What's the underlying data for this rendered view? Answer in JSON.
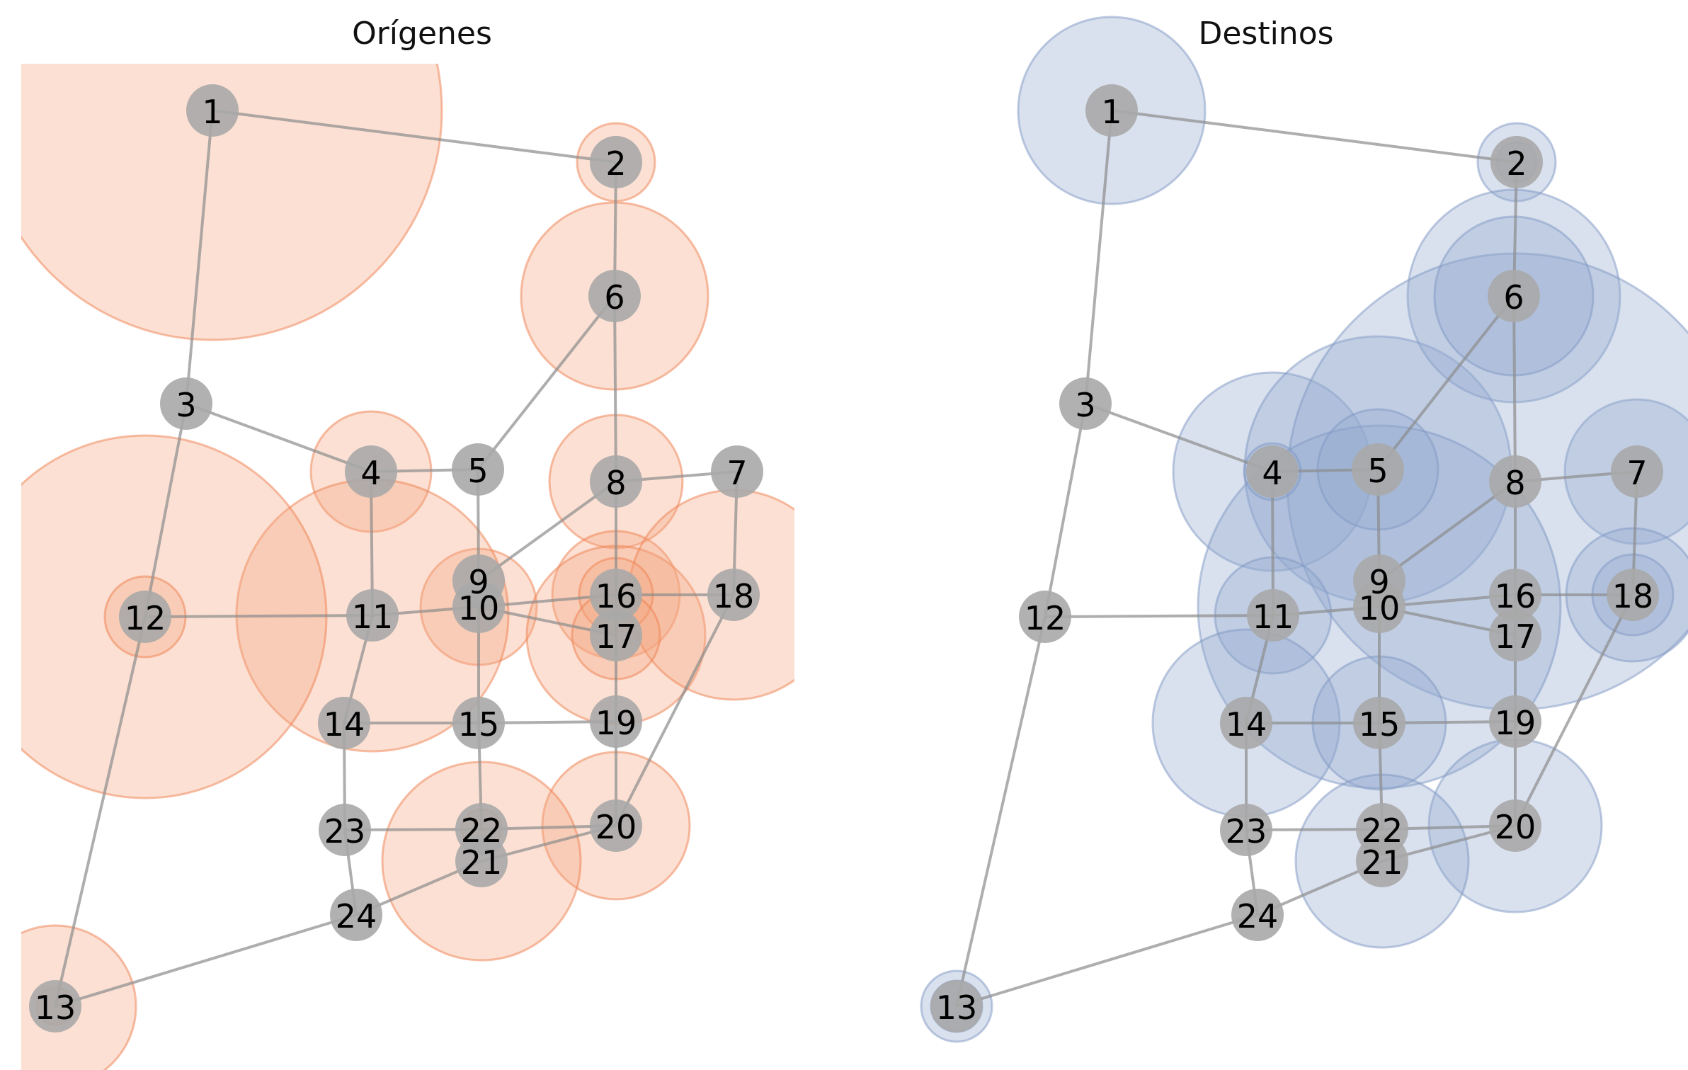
{
  "panels": [
    {
      "id": "origenes",
      "title": "Orígenes",
      "fill_color": "#f4a582",
      "stroke_color": "#f08050",
      "flows": {
        "1": 324,
        "2": 55,
        "3": 0,
        "4": 85,
        "5": 0,
        "6": 132,
        "7": 0,
        "8": 94,
        "9": 0,
        "10": 82,
        "11": 192,
        "12": 256,
        "13": 114,
        "14": 0,
        "15": 0,
        "16": 90,
        "17": 126,
        "18": 148,
        "19": 0,
        "20": 104,
        "21": 140,
        "22": 28,
        "23": 0,
        "24": 0,
        "12b": 57,
        "13b": 26,
        "16b": 52,
        "17b": 62
      }
    },
    {
      "id": "destinos",
      "title": "Destinos",
      "fill_color": "#92a8cd",
      "stroke_color": "#7f97c4",
      "flows": {
        "1": 132,
        "2": 55,
        "3": 0,
        "4": 140,
        "5": 188,
        "6": 150,
        "7": 102,
        "8": 322,
        "9": 0,
        "10": 256,
        "11": 82,
        "12": 0,
        "13": 50,
        "14": 132,
        "15": 94,
        "16": 0,
        "17": 0,
        "18": 94,
        "19": 0,
        "20": 122,
        "21": 122,
        "22": 0,
        "23": 0,
        "24": 0,
        "2b": 28,
        "4b": 40,
        "5b": 85,
        "6b": 112,
        "18b": 57,
        "13b": 36
      }
    }
  ],
  "nodes": [
    "1",
    "2",
    "3",
    "4",
    "5",
    "6",
    "7",
    "8",
    "9",
    "10",
    "11",
    "12",
    "13",
    "14",
    "15",
    "16",
    "17",
    "18",
    "19",
    "20",
    "21",
    "22",
    "23",
    "24"
  ],
  "edges": [
    [
      "1",
      "2"
    ],
    [
      "1",
      "3"
    ],
    [
      "2",
      "6"
    ],
    [
      "3",
      "4"
    ],
    [
      "3",
      "12"
    ],
    [
      "4",
      "5"
    ],
    [
      "4",
      "11"
    ],
    [
      "5",
      "6"
    ],
    [
      "5",
      "9"
    ],
    [
      "6",
      "8"
    ],
    [
      "7",
      "8"
    ],
    [
      "7",
      "18"
    ],
    [
      "8",
      "9"
    ],
    [
      "8",
      "16"
    ],
    [
      "10",
      "11"
    ],
    [
      "10",
      "15"
    ],
    [
      "10",
      "16"
    ],
    [
      "10",
      "17"
    ],
    [
      "11",
      "12"
    ],
    [
      "11",
      "14"
    ],
    [
      "12",
      "13"
    ],
    [
      "13",
      "24"
    ],
    [
      "14",
      "15"
    ],
    [
      "14",
      "23"
    ],
    [
      "15",
      "19"
    ],
    [
      "15",
      "22"
    ],
    [
      "16",
      "18"
    ],
    [
      "16",
      "17"
    ],
    [
      "17",
      "19"
    ],
    [
      "18",
      "20"
    ],
    [
      "19",
      "20"
    ],
    [
      "20",
      "21"
    ],
    [
      "20",
      "22"
    ],
    [
      "21",
      "24"
    ],
    [
      "22",
      "23"
    ],
    [
      "23",
      "24"
    ],
    [
      "9",
      "10"
    ]
  ]
}
